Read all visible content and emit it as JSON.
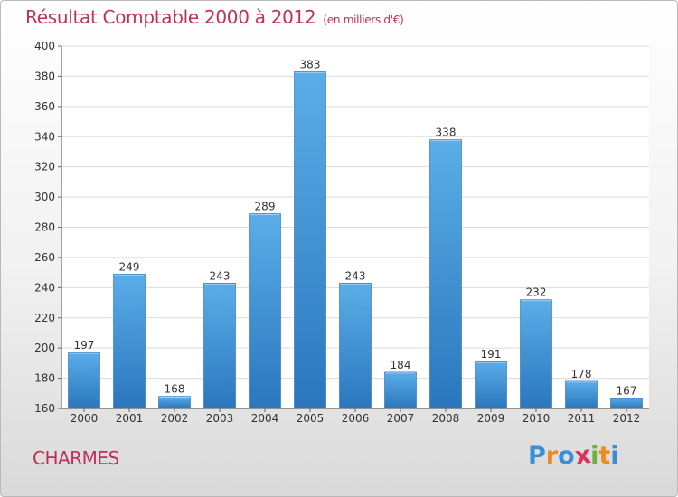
{
  "chart_data": {
    "type": "bar",
    "title": "Résultat Comptable 2000 à 2012",
    "subtitle": "(en milliers d'€)",
    "categories": [
      "2000",
      "2001",
      "2002",
      "2003",
      "2004",
      "2005",
      "2006",
      "2007",
      "2008",
      "2009",
      "2010",
      "2011",
      "2012"
    ],
    "values": [
      197,
      249,
      168,
      243,
      289,
      383,
      243,
      184,
      338,
      191,
      232,
      178,
      167
    ],
    "ylim": [
      160,
      400
    ],
    "yticks": [
      160,
      180,
      200,
      220,
      240,
      260,
      280,
      300,
      320,
      340,
      360,
      380,
      400
    ],
    "xlabel": "",
    "ylabel": "",
    "grid": true,
    "bar_color": "#3d8fd6"
  },
  "location": "CHARMES",
  "logo": {
    "letters": [
      "P",
      "r",
      "o",
      "x",
      "i",
      "t",
      "i"
    ],
    "colors": [
      "#3a8fd8",
      "#f08a1c",
      "#3a8fd8",
      "#d8335c",
      "#67b53a",
      "#f08a1c",
      "#3a8fd8"
    ]
  }
}
